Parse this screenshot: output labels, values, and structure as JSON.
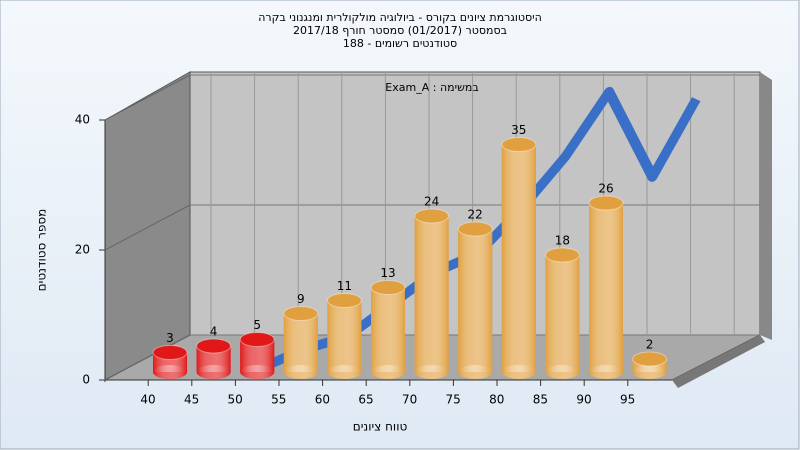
{
  "chart_data": {
    "type": "bar3d",
    "title": [
      "היסטוגרמת ציונים בקורס - ביולוגיה מולקולרית ומנגנוני בקרה",
      "בסמסטר  (01/2017)  סמסטר חורף 2017/18",
      "סטודנטים רשומים - 188"
    ],
    "subtitle": "במשימה : Exam_A",
    "x_label": "טווח ציונים",
    "y_label": "מספר סטודנטים",
    "categories": [
      "40",
      "45",
      "50",
      "55",
      "60",
      "65",
      "70",
      "75",
      "80",
      "85",
      "90",
      "95"
    ],
    "values": [
      3,
      4,
      5,
      9,
      11,
      13,
      24,
      22,
      35,
      18,
      26,
      2
    ],
    "colors": [
      "#e01818",
      "#e01818",
      "#e01818",
      "#e0a040",
      "#e0a040",
      "#e0a040",
      "#e0a040",
      "#e0a040",
      "#e0a040",
      "#e0a040",
      "#e0a040",
      "#e0a040"
    ],
    "curve": {
      "color": "#3a6fc8",
      "values": [
        null,
        1,
        3,
        4,
        8,
        12,
        14,
        20,
        27,
        36,
        22,
        33
      ]
    },
    "ylim": [
      0,
      40
    ],
    "yticks": [
      0,
      20,
      40
    ],
    "grid": true
  }
}
